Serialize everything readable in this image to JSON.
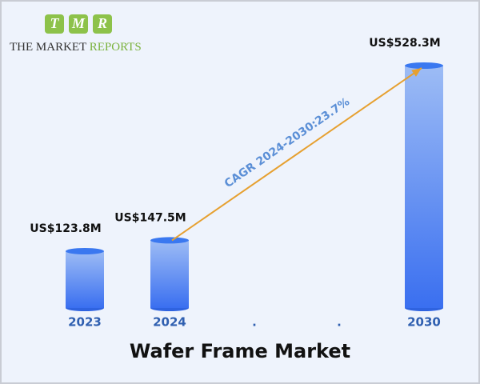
{
  "logo": {
    "letters": [
      "T",
      "M",
      "R"
    ],
    "name": "THE MARKET",
    "name_accent": "REPORTS"
  },
  "chart_data": {
    "type": "bar",
    "title": "Wafer Frame Market",
    "categories": [
      "2023",
      "2024",
      ".",
      ".",
      "2030"
    ],
    "values": [
      123.8,
      147.5,
      null,
      null,
      528.3
    ],
    "value_labels": [
      "US$123.8M",
      "US$147.5M",
      null,
      null,
      "US$528.3M"
    ],
    "annotation": "CAGR 2024-2030:23.7%",
    "color": "#3a78f0"
  }
}
